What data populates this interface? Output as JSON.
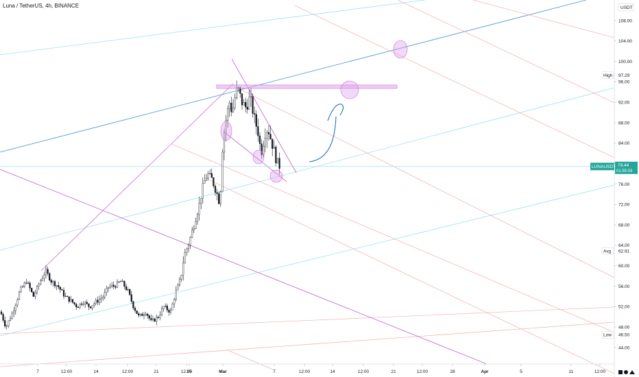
{
  "header": {
    "symbol": "Luna / TetherUS",
    "separator1": ", ",
    "interval": "4h",
    "separator2": ", ",
    "exchange": "BINANCE"
  },
  "chart_data": {
    "type": "candlestick",
    "currency": "USDT",
    "ylim": [
      42,
      111
    ],
    "y_ticks": [
      "108.00",
      "104.00",
      "100.00",
      "96.00",
      "92.00",
      "88.00",
      "84.00",
      "80.00",
      "76.00",
      "72.00",
      "68.00",
      "64.00",
      "60.00",
      "56.00",
      "52.00",
      "48.00",
      "44.00"
    ],
    "x_ticks": [
      "7",
      "12:00",
      "14",
      "12:00",
      "21",
      "12:00",
      "25",
      "Mar",
      "7",
      "12:00",
      "14",
      "12:00",
      "21",
      "12:00",
      "28",
      "Apr",
      "5",
      "11",
      "12:00"
    ],
    "markers": [
      {
        "label": "High",
        "value": "97.29"
      },
      {
        "label": "Avg",
        "value": "62.91"
      },
      {
        "label": "Low",
        "value": "46.50"
      }
    ],
    "last_price": {
      "symbol": "LUNAUSDT",
      "price": "79.44",
      "countdown": "01:55:03"
    },
    "colors": {
      "up": "#26a69a",
      "down": "#ef5350",
      "candle": "#131722",
      "blue_line": "#5b9bd5",
      "cyan_line": "#9fe0ee",
      "pink_line": "#f5b4b4",
      "purple_line": "#c96ad6",
      "accent": "#26a69a"
    }
  }
}
